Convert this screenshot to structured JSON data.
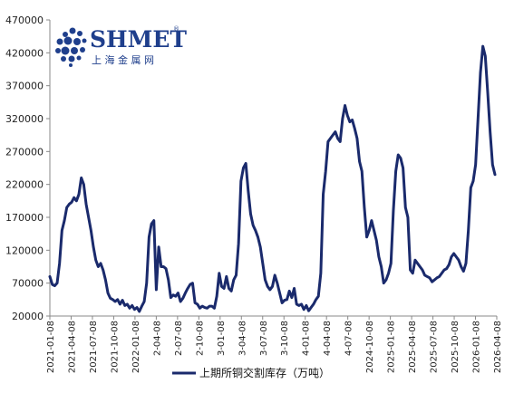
{
  "logo": {
    "name": "SHMET",
    "registered": "®",
    "subtitle": "上 海 金 属 网",
    "icon": "shmet-globe-logo"
  },
  "chart_data": {
    "type": "line",
    "title": "",
    "xlabel": "",
    "ylabel": "",
    "ylim": [
      20000,
      470000
    ],
    "yticks": [
      20000,
      70000,
      120000,
      170000,
      220000,
      270000,
      320000,
      370000,
      420000,
      470000
    ],
    "xticks": [
      "2021-01-08",
      "2021-04-08",
      "2021-07-08",
      "2021-10-08",
      "2022-01-08",
      "2-04-08",
      "2-07-08",
      "2-10-08",
      "3-01-08",
      "3-04-08",
      "3-07-08",
      "3-10-08",
      "4-01-08",
      "4-04-08",
      "4-07-08",
      "2024-10-08",
      "2025-01-08",
      "2025-04-08",
      "2025-07-08",
      "2025-10-08",
      "2026-01-08",
      "2026-04-08"
    ],
    "grid": false,
    "legend": "bottom-center",
    "colors": {
      "line": "#1a2a6c"
    },
    "series": [
      {
        "name": "上期所铜交割库存（万吨）",
        "x_start": "2021-01-08",
        "x_end": "2026-04-10",
        "frequency": "weekly",
        "values": [
          80000,
          68000,
          66000,
          70000,
          100000,
          150000,
          165000,
          185000,
          190000,
          193000,
          200000,
          195000,
          205000,
          230000,
          220000,
          190000,
          170000,
          150000,
          125000,
          105000,
          95000,
          100000,
          90000,
          75000,
          55000,
          47000,
          45000,
          42000,
          45000,
          38000,
          44000,
          36000,
          38000,
          32000,
          36000,
          30000,
          33000,
          27000,
          35000,
          42000,
          70000,
          140000,
          160000,
          165000,
          60000,
          125000,
          95000,
          95000,
          92000,
          75000,
          48000,
          52000,
          50000,
          55000,
          42000,
          47000,
          55000,
          62000,
          68000,
          70000,
          40000,
          38000,
          32000,
          35000,
          33000,
          32000,
          35000,
          35000,
          32000,
          50000,
          85000,
          65000,
          62000,
          80000,
          62000,
          58000,
          75000,
          82000,
          130000,
          225000,
          245000,
          252000,
          210000,
          175000,
          158000,
          150000,
          140000,
          125000,
          100000,
          75000,
          65000,
          60000,
          65000,
          82000,
          70000,
          55000,
          40000,
          44000,
          45000,
          58000,
          48000,
          62000,
          38000,
          36000,
          38000,
          30000,
          36000,
          28000,
          33000,
          38000,
          45000,
          50000,
          85000,
          205000,
          240000,
          285000,
          290000,
          295000,
          300000,
          290000,
          285000,
          320000,
          340000,
          325000,
          315000,
          318000,
          305000,
          290000,
          255000,
          240000,
          185000,
          140000,
          150000,
          165000,
          150000,
          135000,
          110000,
          95000,
          70000,
          75000,
          85000,
          100000,
          180000,
          240000,
          265000,
          260000,
          245000,
          185000,
          170000,
          90000,
          85000,
          105000,
          100000,
          95000,
          90000,
          82000,
          80000,
          78000,
          72000,
          75000,
          78000,
          80000,
          85000,
          90000,
          92000,
          98000,
          110000,
          115000,
          110000,
          105000,
          95000,
          88000,
          100000,
          150000,
          215000,
          225000,
          250000,
          320000,
          390000,
          430000,
          415000,
          360000,
          300000,
          250000,
          235000
        ]
      }
    ]
  }
}
